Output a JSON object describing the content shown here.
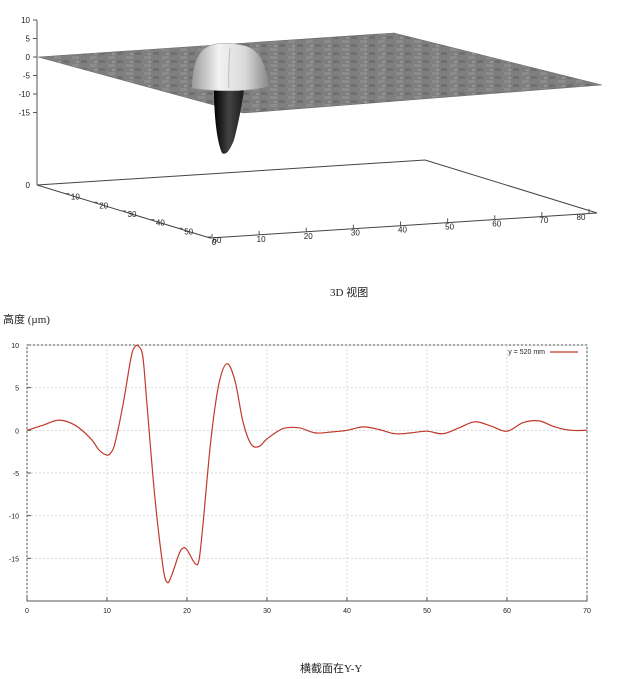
{
  "surface_caption": "3D 视图",
  "y_unit_label": "高度 (µm)",
  "profile_caption": "横截面在Y-Y",
  "chart_data": [
    {
      "type": "surface",
      "title": "3D 视图",
      "z_ticks": [
        10,
        5,
        0,
        -5,
        -10,
        -15
      ],
      "z_floor_tick": 0,
      "x_ticks": [
        0,
        10,
        20,
        30,
        40,
        50,
        60,
        70,
        80
      ],
      "y_ticks": [
        10,
        20,
        30,
        40,
        50,
        60
      ],
      "x_range": [
        0,
        80
      ],
      "y_range": [
        0,
        60
      ],
      "z_range": [
        -15,
        10
      ],
      "features": [
        {
          "kind": "peak",
          "height": 10
        },
        {
          "kind": "pit",
          "depth": -18
        }
      ],
      "colors": {
        "surface": "#7a7a7a",
        "peak": "#e6e6e6",
        "pit": "#111111"
      }
    },
    {
      "type": "line",
      "title": "横截面在Y-Y",
      "ylabel": "高度 (µm)",
      "xlim": [
        0,
        70
      ],
      "ylim": [
        -20,
        10
      ],
      "x_ticks": [
        0,
        10,
        20,
        30,
        40,
        50,
        60,
        70
      ],
      "y_ticks": [
        10,
        5,
        0,
        -5,
        -10,
        -15
      ],
      "grid": true,
      "legend_position": "top-right",
      "series": [
        {
          "name": "y = 520 mm",
          "color": "#c0392b",
          "x": [
            0,
            2,
            4,
            6,
            8,
            9,
            10,
            10.5,
            11,
            12,
            13,
            13.5,
            14,
            14.5,
            15,
            16,
            17,
            17.5,
            18,
            19,
            19.5,
            20,
            21,
            21.5,
            22,
            23,
            24,
            25,
            26,
            27,
            28,
            29,
            30,
            32,
            34,
            36,
            38,
            40,
            42,
            44,
            46,
            48,
            50,
            52,
            54,
            56,
            58,
            60,
            62,
            64,
            66,
            68,
            70
          ],
          "y": [
            0,
            0.6,
            1.2,
            0.6,
            -1,
            -2.3,
            -2.9,
            -2.6,
            -1.5,
            3,
            8.5,
            9.8,
            9.8,
            8.5,
            3,
            -8,
            -16,
            -17.8,
            -17.2,
            -14.5,
            -13.8,
            -14,
            -15.6,
            -15.2,
            -11,
            -1,
            5.5,
            7.8,
            5.8,
            1,
            -1.6,
            -1.9,
            -1,
            0.2,
            0.3,
            -0.3,
            -0.2,
            0,
            0.4,
            0.1,
            -0.4,
            -0.3,
            -0.1,
            -0.4,
            0.3,
            1.0,
            0.5,
            -0.1,
            0.9,
            1.1,
            0.4,
            0,
            0
          ]
        }
      ]
    }
  ]
}
